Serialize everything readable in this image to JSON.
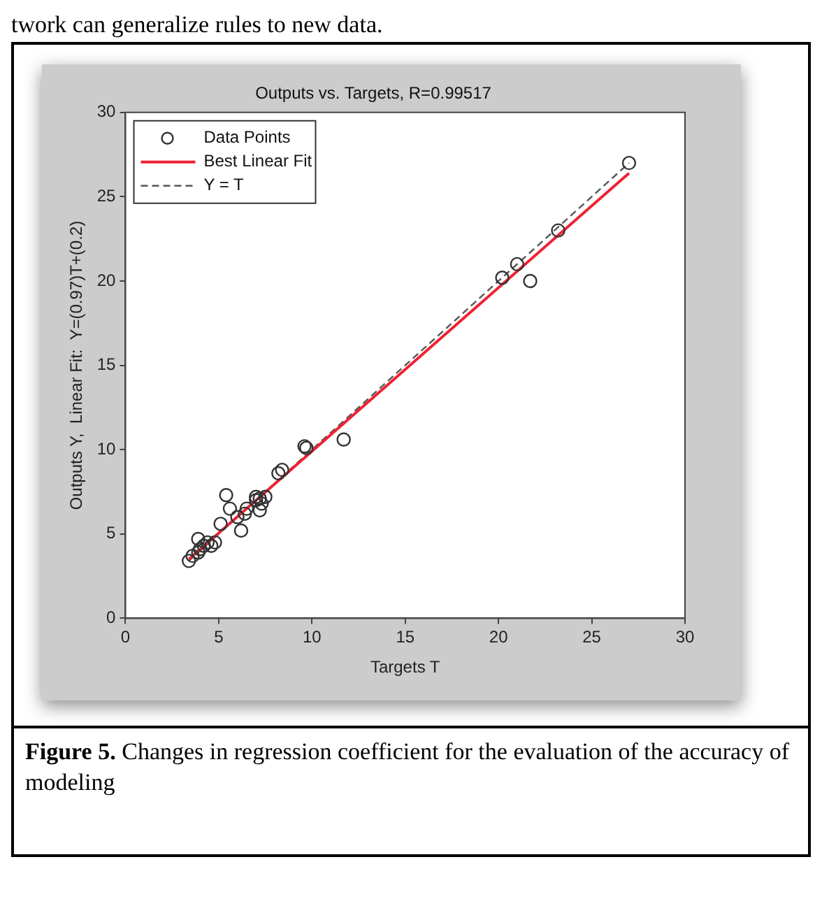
{
  "chart_data": {
    "type": "scatter",
    "title": "Outputs vs. Targets, R=0.99517",
    "xlabel": "Targets T",
    "ylabel": "Outputs Y,  Linear Fit:  Y=(0.97)T+(0.2)",
    "xlim": [
      0,
      30
    ],
    "ylim": [
      0,
      30
    ],
    "xticks": [
      0,
      5,
      10,
      15,
      20,
      25,
      30
    ],
    "yticks": [
      0,
      5,
      10,
      15,
      20,
      25,
      30
    ],
    "legend": "top left",
    "series": [
      {
        "name": "Data Points",
        "marker": "circle",
        "color": "#333333",
        "x": [
          27,
          23.2,
          21,
          21.7,
          20.2,
          11.7,
          9.6,
          9.7,
          8.4,
          8.2,
          7.5,
          7.2,
          7.0,
          7.3,
          7.2,
          7.0,
          6.5,
          6.4,
          6.0,
          5.4,
          5.6,
          6.2,
          5.1,
          4.8,
          4.4,
          4.2,
          4.0,
          3.9,
          3.9,
          3.6,
          3.4,
          4.6
        ],
        "values": [
          27,
          23,
          21,
          20,
          20.2,
          10.6,
          10.2,
          10.1,
          8.8,
          8.6,
          7.2,
          7.1,
          7.2,
          6.8,
          6.4,
          7.0,
          6.5,
          6.2,
          6.0,
          7.3,
          6.5,
          5.2,
          5.6,
          4.5,
          4.5,
          4.3,
          4.1,
          4.7,
          3.9,
          3.7,
          3.4,
          4.3
        ]
      },
      {
        "name": "Best Linear Fit",
        "type": "line",
        "marker": "none",
        "color": "#ee2233",
        "line_style": "solid",
        "x": [
          3.4,
          27
        ],
        "values": [
          3.5,
          26.4
        ]
      },
      {
        "name": "Y = T",
        "type": "line",
        "marker": "none",
        "color": "#555555",
        "line_style": "dashed",
        "x": [
          3.4,
          27
        ],
        "values": [
          3.4,
          27
        ]
      }
    ],
    "annotations": [
      "twork can generalize rules to new data.",
      "Figure 5. Changes in regression coefficient for the evaluation of the accuracy of modeling"
    ]
  }
}
